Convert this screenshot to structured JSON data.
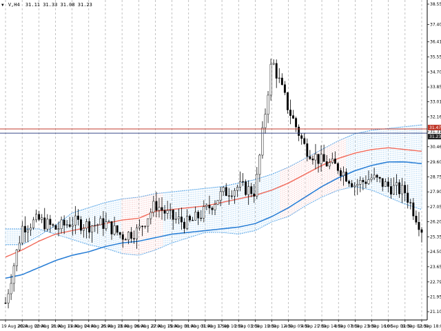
{
  "header": {
    "symbol_icon": "triangle-down-icon",
    "symbol": "V,H4",
    "ohlc": "31.11 31.33 31.08 31.23"
  },
  "colors": {
    "background": "#ffffff",
    "grid": "#9a9a9a",
    "candle": "#000000",
    "ma": "#f26a5a",
    "upper_band": "#5da8e8",
    "lower_band": "#5da8e8",
    "mid_line": "#2a7fd6",
    "fill_blue": "#aed6f5",
    "fill_red": "#f7c6c6",
    "hl_red": "#c0392b",
    "hl_blue": "#3a4a8a",
    "tag_red": "#c0392b",
    "tag_dark": "#222222"
  },
  "price_axis": {
    "labels": [
      "38.55",
      "37.40",
      "36.41",
      "35.55",
      "34.70",
      "33.85",
      "33.01",
      "32.16",
      "31.31",
      "30.46",
      "29.60",
      "28.75",
      "27.90",
      "27.05",
      "26.20",
      "25.35",
      "24.50",
      "23.65",
      "22.79",
      "21.95",
      "21.10"
    ]
  },
  "time_axis": {
    "labels": [
      "19 Aug 2020",
      "20 Aug 02:00",
      "20 Aug 18:00",
      "21 Aug 11:00",
      "24 Aug 04:00",
      "24 Aug 20:00",
      "25 Aug 13:00",
      "26 Aug 06:00",
      "26 Aug 22:00",
      "27 Aug 15:00",
      "28 Aug 08:00",
      "31 Aug 01:00",
      "31 Aug 17:00",
      "1 Sep 10:00",
      "2 Sep 03:00",
      "2 Sep 19:00",
      "3 Sep 12:00",
      "4 Sep 05:00",
      "4 Sep 21:00",
      "7 Sep 14:00",
      "8 Sep 07:00",
      "8 Sep 23:00",
      "9 Sep 16:00",
      "10 Sep 09:00",
      "11 Sep 02:00",
      "11 Sep 18:00"
    ]
  },
  "price_tags": [
    {
      "value": "31.47",
      "color_key": "tag_red"
    },
    {
      "value": "31.23",
      "color_key": "tag_dark"
    }
  ],
  "chart_data": {
    "type": "candlestick",
    "symbol": "V,H4",
    "ylim": [
      21.1,
      38.55
    ],
    "x": [
      "19 Aug 2020",
      "20 Aug 02:00",
      "20 Aug 18:00",
      "21 Aug 11:00",
      "24 Aug 04:00",
      "24 Aug 20:00",
      "25 Aug 13:00",
      "26 Aug 06:00",
      "26 Aug 22:00",
      "27 Aug 15:00",
      "28 Aug 08:00",
      "31 Aug 01:00",
      "31 Aug 17:00",
      "1 Sep 10:00",
      "2 Sep 03:00",
      "2 Sep 19:00",
      "3 Sep 12:00",
      "4 Sep 05:00",
      "4 Sep 21:00",
      "7 Sep 14:00",
      "8 Sep 07:00",
      "8 Sep 23:00",
      "9 Sep 16:00",
      "10 Sep 09:00",
      "11 Sep 02:00",
      "11 Sep 18:00"
    ],
    "series": [
      {
        "values": [
          21.6,
          25.9,
          26.3,
          25.8,
          26.2,
          26.0,
          26.1,
          25.4,
          25.7,
          27.2,
          26.4,
          26.1,
          26.8,
          27.8,
          28.2,
          27.9,
          35.4,
          32.6,
          30.4,
          29.6,
          29.3,
          28.3,
          28.7,
          28.2,
          27.9,
          25.8
        ]
      },
      {
        "values": [
          24.9,
          24.9,
          25.4,
          26.0,
          26.7,
          27.0,
          27.3,
          27.5,
          27.6,
          27.8,
          27.9,
          28.0,
          28.1,
          28.2,
          28.4,
          28.6,
          28.9,
          29.3,
          29.8,
          30.3,
          30.8,
          31.2,
          31.4,
          31.5,
          31.6,
          31.7
        ]
      },
      {
        "values": [
          24.2,
          24.6,
          25.1,
          25.5,
          25.7,
          25.9,
          26.1,
          26.3,
          26.4,
          26.8,
          26.9,
          27.0,
          27.1,
          27.3,
          27.5,
          27.7,
          28.0,
          28.4,
          28.9,
          29.4,
          29.8,
          30.1,
          30.3,
          30.4,
          30.3,
          30.2
        ]
      },
      {
        "values": [
          23.0,
          23.2,
          23.6,
          24.0,
          24.3,
          24.5,
          24.8,
          25.0,
          25.1,
          25.3,
          25.5,
          25.6,
          25.7,
          25.8,
          25.9,
          26.1,
          26.5,
          27.0,
          27.6,
          28.2,
          28.7,
          29.1,
          29.4,
          29.6,
          29.6,
          29.5
        ]
      },
      {
        "values": [
          25.8,
          25.8,
          25.8,
          25.5,
          25.2,
          24.9,
          24.7,
          24.4,
          24.3,
          24.6,
          25.0,
          25.3,
          25.6,
          25.6,
          25.5,
          25.7,
          26.2,
          26.5,
          27.1,
          27.6,
          28.0,
          28.2,
          28.0,
          27.6,
          27.2,
          26.9
        ]
      }
    ],
    "horizontal_lines": [
      31.47,
      31.23
    ]
  }
}
